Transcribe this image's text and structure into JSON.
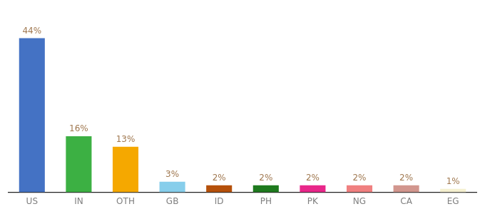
{
  "chart_data": {
    "type": "bar",
    "categories": [
      "US",
      "IN",
      "OTH",
      "GB",
      "ID",
      "PH",
      "PK",
      "NG",
      "CA",
      "EG"
    ],
    "values": [
      44,
      16,
      13,
      3,
      2,
      2,
      2,
      2,
      2,
      1
    ],
    "value_labels": [
      "44%",
      "16%",
      "13%",
      "3%",
      "2%",
      "2%",
      "2%",
      "2%",
      "2%",
      "1%"
    ],
    "colors": [
      "#4472c4",
      "#3cb043",
      "#f5a800",
      "#87ceeb",
      "#b5500a",
      "#1e7a1e",
      "#e8278a",
      "#f08080",
      "#d2968e",
      "#f5f0d0"
    ],
    "ylim": [
      0,
      50
    ],
    "grid": false,
    "data_labels": true,
    "tick_labels": "x"
  }
}
